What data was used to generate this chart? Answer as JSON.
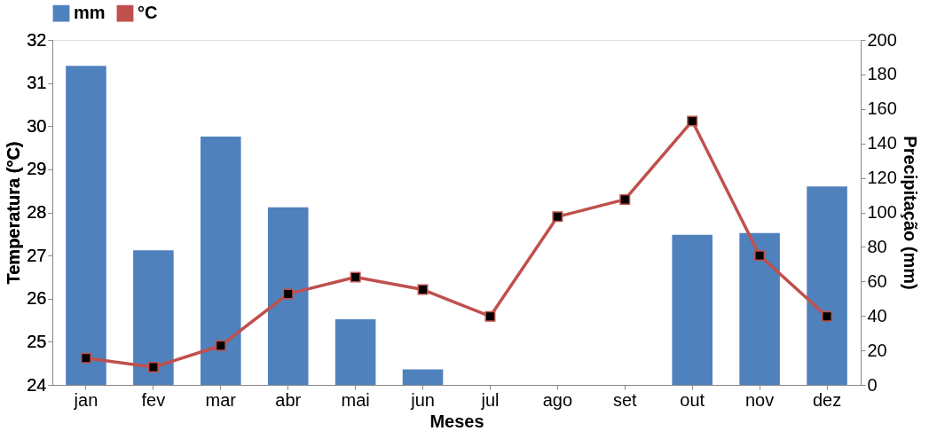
{
  "chart_data": {
    "type": "bar",
    "xlabel": "Meses",
    "ylabel": "Temperatura (°C)",
    "y2label": "Precipitação (mm)",
    "categories": [
      "jan",
      "fev",
      "mar",
      "abr",
      "mai",
      "jun",
      "jul",
      "ago",
      "set",
      "out",
      "nov",
      "dez"
    ],
    "series": [
      {
        "name": "mm",
        "axis": "y2",
        "color": "#4f81bd",
        "values": [
          185,
          78,
          144,
          103,
          38,
          9,
          0,
          0,
          0,
          87,
          88,
          115
        ]
      },
      {
        "name": "°C",
        "type": "line",
        "axis": "y",
        "color": "#c0504d",
        "marker": "square",
        "values": [
          24.62,
          24.41,
          24.91,
          26.11,
          26.5,
          26.21,
          25.59,
          27.9,
          28.3,
          30.12,
          27.0,
          25.59
        ]
      }
    ],
    "ylim": [
      24,
      32
    ],
    "yticks": [
      24,
      25,
      26,
      27,
      28,
      29,
      30,
      31,
      32
    ],
    "y2lim": [
      0,
      200
    ],
    "y2ticks": [
      0,
      20,
      40,
      60,
      80,
      100,
      120,
      140,
      160,
      180,
      200
    ],
    "legend": "top",
    "grid": false
  }
}
